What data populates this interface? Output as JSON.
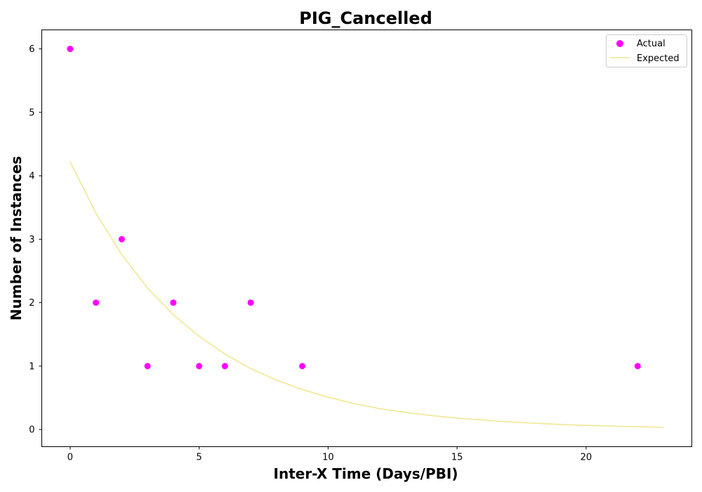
{
  "chart_data": {
    "type": "scatter",
    "title": "PIG_Cancelled",
    "xlabel": "Inter-X Time (Days/PBI)",
    "ylabel": "Number of Instances",
    "xlim": [
      -1.1,
      24.1
    ],
    "ylim": [
      -0.27,
      6.3
    ],
    "xticks": [
      0,
      5,
      10,
      15,
      20
    ],
    "yticks": [
      0,
      1,
      2,
      3,
      4,
      5,
      6
    ],
    "grid": false,
    "legend_position": "top-right",
    "series": [
      {
        "name": "Actual",
        "kind": "scatter",
        "color": "#ff00ff",
        "x": [
          0,
          1,
          2,
          3,
          4,
          5,
          6,
          7,
          9,
          22
        ],
        "y": [
          6,
          2,
          3,
          1,
          2,
          1,
          1,
          2,
          1,
          1
        ]
      },
      {
        "name": "Expected",
        "kind": "line",
        "color": "#f0e68c",
        "x": [
          0,
          1,
          2,
          3,
          4,
          5,
          6,
          7,
          8,
          9,
          10,
          11,
          12,
          13,
          14,
          15,
          16,
          17,
          18,
          19,
          20,
          21,
          22,
          23
        ],
        "y": [
          4.22,
          3.41,
          2.76,
          2.23,
          1.81,
          1.47,
          1.19,
          0.96,
          0.78,
          0.63,
          0.51,
          0.41,
          0.33,
          0.27,
          0.22,
          0.18,
          0.15,
          0.12,
          0.1,
          0.08,
          0.065,
          0.055,
          0.045,
          0.035
        ]
      }
    ]
  }
}
